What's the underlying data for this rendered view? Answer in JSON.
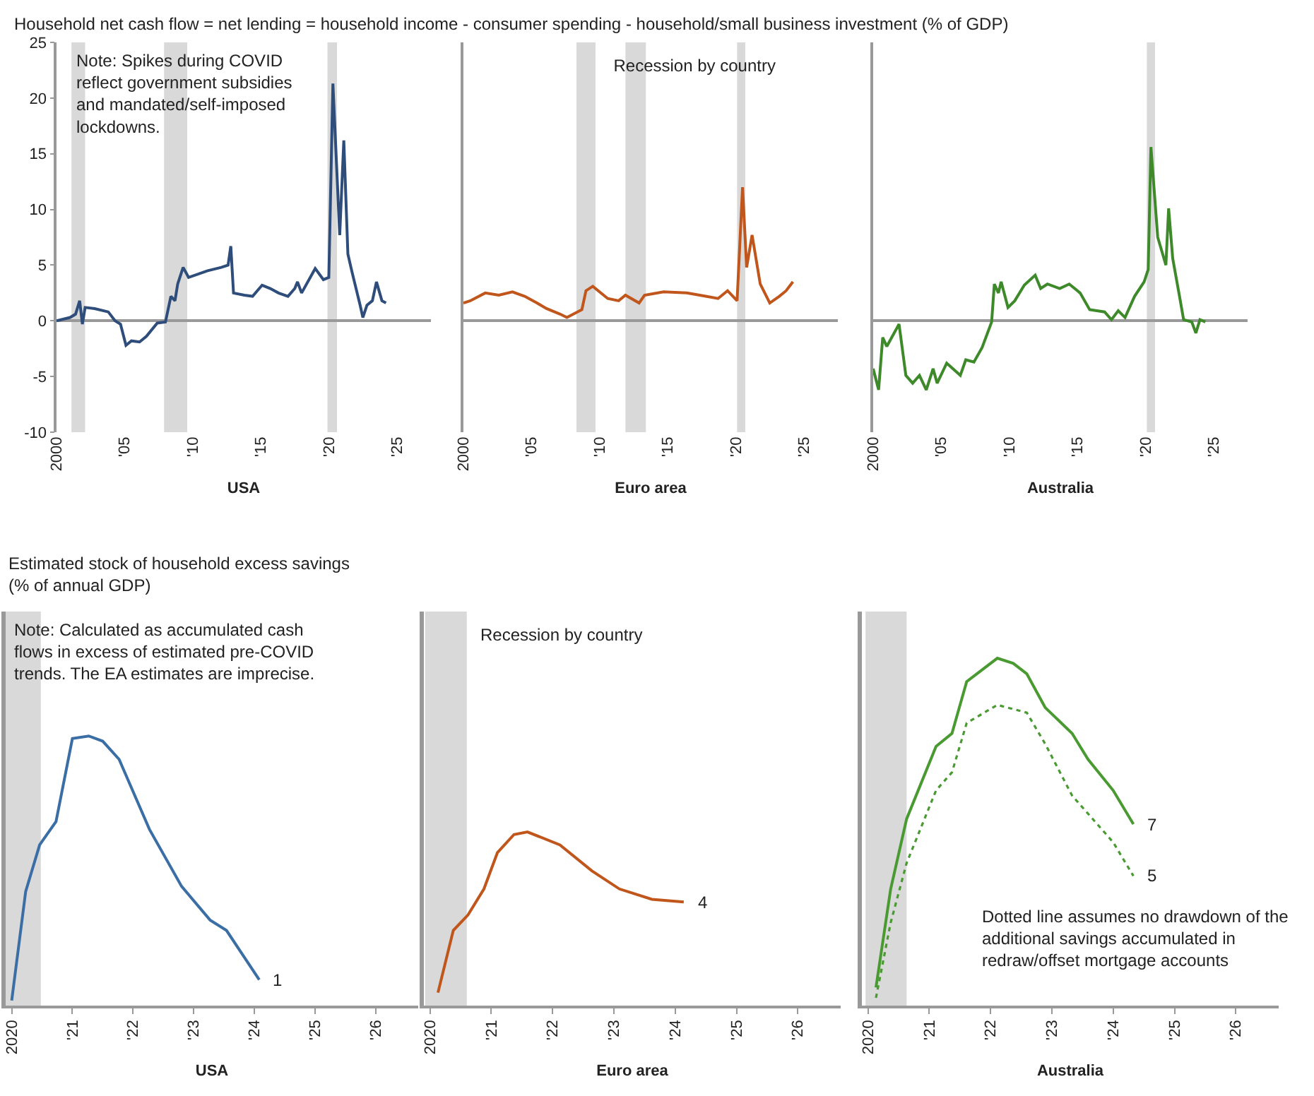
{
  "chart_data": [
    {
      "type": "line",
      "title": "Household net cash flow = net lending = household income - consumer spending - household/small business investment (% of GDP)",
      "xlabel": "USA",
      "annotations": [
        "Note: Spikes during COVID reflect government subsidies and mandated/self-imposed lockdowns."
      ],
      "xlim": [
        2000,
        2027.5
      ],
      "xticks": [
        {
          "value": 2000,
          "label": "2000"
        },
        {
          "value": 2005,
          "label": "'05"
        },
        {
          "value": 2010,
          "label": "'10"
        },
        {
          "value": 2015,
          "label": "'15"
        },
        {
          "value": 2020,
          "label": "'20"
        },
        {
          "value": 2025,
          "label": "'25"
        }
      ],
      "ylim": [
        -10,
        25
      ],
      "yticks": [
        -10,
        -5,
        0,
        5,
        10,
        15,
        20,
        25
      ],
      "bands": [
        {
          "axis": "x",
          "from": 2001.1,
          "to": 2002.1,
          "color": "#d9d9d9"
        },
        {
          "axis": "x",
          "from": 2007.9,
          "to": 2009.6,
          "color": "#d9d9d9"
        },
        {
          "axis": "x",
          "from": 2019.9,
          "to": 2020.6,
          "color": "#d9d9d9"
        }
      ],
      "series": [
        {
          "color": "#2e4d7b",
          "x": [
            2000,
            2001.0,
            2001.4,
            2001.7,
            2001.9,
            2002.1,
            2002.8,
            2003.8,
            2004.3,
            2004.7,
            2005.1,
            2005.5,
            2006.1,
            2006.6,
            2007.4,
            2008.0,
            2008.4,
            2008.7,
            2008.9,
            2009.3,
            2009.7,
            2011.1,
            2012.1,
            2012.6,
            2012.8,
            2013.0,
            2013.8,
            2014.4,
            2015.1,
            2015.7,
            2016.3,
            2017.0,
            2017.5,
            2017.7,
            2018.0,
            2019.0,
            2019.6,
            2020.0,
            2020.3,
            2020.8,
            2021.1,
            2021.4,
            2021.7,
            2022.3,
            2022.5,
            2022.8,
            2023.2,
            2023.5,
            2023.9,
            2024.2
          ],
          "values": [
            0,
            0.3,
            0.6,
            1.8,
            -0.3,
            1.2,
            1.1,
            0.8,
            0,
            -0.3,
            -2.2,
            -1.8,
            -1.9,
            -1.4,
            -0.2,
            -0.1,
            2.2,
            1.8,
            3.3,
            4.8,
            3.9,
            4.5,
            4.8,
            5.0,
            6.7,
            2.5,
            2.3,
            2.2,
            3.2,
            2.9,
            2.5,
            2.2,
            2.9,
            3.5,
            2.5,
            4.7,
            3.7,
            3.9,
            21.3,
            7.7,
            16.2,
            6.0,
            4.4,
            1.4,
            0.3,
            1.4,
            1.8,
            3.5,
            1.8,
            1.6
          ]
        }
      ]
    },
    {
      "type": "line",
      "xlabel": "Euro area",
      "tick_labels": "x",
      "legend": "top",
      "xlim": [
        2000,
        2027.5
      ],
      "xticks": [
        {
          "value": 2000,
          "label": "2000"
        },
        {
          "value": 2005,
          "label": "'05"
        },
        {
          "value": 2010,
          "label": "'10"
        },
        {
          "value": 2015,
          "label": "'15"
        },
        {
          "value": 2020,
          "label": "'20"
        },
        {
          "value": 2025,
          "label": "'25"
        }
      ],
      "ylim": [
        -10,
        25
      ],
      "yticks": [
        -10,
        -5,
        0,
        5,
        10,
        15,
        20,
        25
      ],
      "bands": [
        {
          "axis": "x",
          "from": 2008.3,
          "to": 2009.7,
          "color": "#d9d9d9",
          "label": "Recession by country"
        },
        {
          "axis": "x",
          "from": 2011.9,
          "to": 2013.4,
          "color": "#d9d9d9"
        },
        {
          "axis": "x",
          "from": 2020.1,
          "to": 2020.7,
          "color": "#d9d9d9"
        }
      ],
      "series": [
        {
          "color": "#c0561c",
          "x": [
            2000,
            2000.5,
            2001.6,
            2002.6,
            2003.6,
            2004.5,
            2005.4,
            2006.1,
            2007.1,
            2007.6,
            2008.7,
            2009.0,
            2009.5,
            2010.6,
            2011.4,
            2011.9,
            2012.9,
            2013.3,
            2014.7,
            2016.4,
            2017.8,
            2018.7,
            2019.4,
            2020.1,
            2020.5,
            2020.8,
            2021.2,
            2021.8,
            2022.5,
            2023.2,
            2023.7,
            2024.2
          ],
          "values": [
            1.6,
            1.8,
            2.5,
            2.3,
            2.6,
            2.2,
            1.6,
            1.1,
            0.6,
            0.3,
            1.0,
            2.7,
            3.1,
            2.0,
            1.8,
            2.3,
            1.6,
            2.3,
            2.6,
            2.5,
            2.2,
            2.0,
            2.7,
            1.8,
            12.0,
            4.8,
            7.7,
            3.3,
            1.6,
            2.2,
            2.7,
            3.5
          ]
        }
      ]
    },
    {
      "type": "line",
      "xlabel": "Australia",
      "tick_labels": "x",
      "xlim": [
        2000,
        2027.5
      ],
      "xticks": [
        {
          "value": 2000,
          "label": "2000"
        },
        {
          "value": 2005,
          "label": "'05"
        },
        {
          "value": 2010,
          "label": "'10"
        },
        {
          "value": 2015,
          "label": "'15"
        },
        {
          "value": 2020,
          "label": "'20"
        },
        {
          "value": 2025,
          "label": "'25"
        }
      ],
      "ylim": [
        -10,
        25
      ],
      "yticks": [
        -10,
        -5,
        0,
        5,
        10,
        15,
        20,
        25
      ],
      "bands": [
        {
          "axis": "x",
          "from": 2020.1,
          "to": 2020.7,
          "color": "#d9d9d9"
        }
      ],
      "series": [
        {
          "color": "#3e8a2a",
          "x": [
            2000,
            2000.4,
            2000.7,
            2001.0,
            2001.9,
            2002.4,
            2002.9,
            2003.4,
            2003.9,
            2004.4,
            2004.7,
            2005.4,
            2006.4,
            2006.8,
            2007.4,
            2008.0,
            2008.7,
            2008.9,
            2009.2,
            2009.4,
            2009.9,
            2010.4,
            2011.1,
            2011.9,
            2012.3,
            2012.8,
            2013.7,
            2014.4,
            2015.2,
            2015.9,
            2017.0,
            2017.5,
            2018.0,
            2018.5,
            2019.2,
            2019.9,
            2020.2,
            2020.4,
            2020.9,
            2021.5,
            2021.7,
            2022.0,
            2022.5,
            2022.8,
            2023.4,
            2023.7,
            2024.0,
            2024.4
          ],
          "values": [
            -4.3,
            -6.2,
            -1.5,
            -2.3,
            -0.3,
            -4.9,
            -5.6,
            -4.9,
            -6.2,
            -4.3,
            -5.6,
            -3.8,
            -4.9,
            -3.5,
            -3.7,
            -2.4,
            -0.1,
            3.3,
            2.5,
            3.5,
            1.2,
            1.8,
            3.2,
            4.1,
            2.9,
            3.3,
            2.9,
            3.3,
            2.5,
            1.0,
            0.8,
            0.1,
            0.9,
            0.3,
            2.2,
            3.5,
            4.6,
            15.6,
            7.5,
            5.0,
            10.1,
            5.6,
            2.2,
            0.1,
            -0.1,
            -1.1,
            0.1,
            -0.1
          ]
        }
      ]
    },
    {
      "type": "line",
      "title": "Estimated stock of household excess savings (% of annual GDP)",
      "xlabel": "USA",
      "tick_labels": "x",
      "annotations": [
        "Note: Calculated as accumulated cash flows in excess of estimated pre-COVID trends. The EA estimates are imprecise."
      ],
      "xlim": [
        2019.9,
        2026.7
      ],
      "xticks": [
        {
          "value": 2020,
          "label": "2020"
        },
        {
          "value": 2021,
          "label": "'21"
        },
        {
          "value": 2022,
          "label": "'22"
        },
        {
          "value": 2023,
          "label": "'23"
        },
        {
          "value": 2024,
          "label": "'24"
        },
        {
          "value": 2025,
          "label": "'25"
        },
        {
          "value": 2026,
          "label": "'26"
        }
      ],
      "ylim": [
        0,
        15.2
      ],
      "bands": [
        {
          "axis": "x",
          "from": 2019.9,
          "to": 2020.48,
          "color": "#d9d9d9"
        }
      ],
      "series": [
        {
          "color": "#3a6ea5",
          "x": [
            2020.0,
            2020.23,
            2020.46,
            2020.73,
            2021.0,
            2021.27,
            2021.5,
            2021.77,
            2022.27,
            2022.8,
            2023.27,
            2023.54,
            2024.08
          ],
          "values": [
            0.2,
            4.4,
            6.2,
            7.1,
            10.3,
            10.4,
            10.2,
            9.5,
            6.8,
            4.6,
            3.3,
            2.9,
            1
          ],
          "value_labels": [
            null,
            null,
            null,
            null,
            null,
            null,
            null,
            null,
            null,
            null,
            null,
            null,
            "1"
          ]
        }
      ]
    },
    {
      "type": "line",
      "xlabel": "Euro area",
      "tick_labels": "x",
      "legend": "top",
      "xlim": [
        2019.9,
        2026.7
      ],
      "xticks": [
        {
          "value": 2020,
          "label": "2020"
        },
        {
          "value": 2021,
          "label": "'21"
        },
        {
          "value": 2022,
          "label": "'22"
        },
        {
          "value": 2023,
          "label": "'23"
        },
        {
          "value": 2024,
          "label": "'24"
        },
        {
          "value": 2025,
          "label": "'25"
        },
        {
          "value": 2026,
          "label": "'26"
        }
      ],
      "ylim": [
        0,
        15.2
      ],
      "bands": [
        {
          "axis": "x",
          "from": 2019.92,
          "to": 2020.6,
          "color": "#d9d9d9",
          "label": "Recession by country"
        }
      ],
      "series": [
        {
          "color": "#c0561c",
          "x": [
            2020.13,
            2020.38,
            2020.62,
            2020.88,
            2021.1,
            2021.37,
            2021.59,
            2022.12,
            2022.64,
            2023.09,
            2023.62,
            2024.14
          ],
          "values": [
            0.5,
            2.9,
            3.5,
            4.5,
            5.9,
            6.6,
            6.7,
            6.2,
            5.2,
            4.5,
            4.1,
            4
          ],
          "value_labels": [
            null,
            null,
            null,
            null,
            null,
            null,
            null,
            null,
            null,
            null,
            null,
            "4"
          ]
        }
      ]
    },
    {
      "type": "line",
      "xlabel": "Australia",
      "tick_labels": "x",
      "annotations": [
        "Dotted line assumes no drawdown of the additional savings accumulated in redraw/offset mortgage accounts"
      ],
      "xlim": [
        2019.9,
        2026.7
      ],
      "xticks": [
        {
          "value": 2020,
          "label": "2020"
        },
        {
          "value": 2021,
          "label": "'21"
        },
        {
          "value": 2022,
          "label": "'22"
        },
        {
          "value": 2023,
          "label": "'23"
        },
        {
          "value": 2024,
          "label": "'24"
        },
        {
          "value": 2025,
          "label": "'25"
        },
        {
          "value": 2026,
          "label": "'26"
        }
      ],
      "ylim": [
        0,
        15.2
      ],
      "bands": [
        {
          "axis": "x",
          "from": 2019.96,
          "to": 2020.63,
          "color": "#d9d9d9"
        }
      ],
      "series": [
        {
          "color": "#4a9a32",
          "x": [
            2020.13,
            2020.37,
            2020.63,
            2021.11,
            2021.37,
            2021.61,
            2022.11,
            2022.37,
            2022.59,
            2022.89,
            2023.33,
            2023.59,
            2024.0,
            2024.33
          ],
          "values": [
            0.7,
            4.5,
            7.2,
            10.0,
            10.5,
            12.5,
            13.4,
            13.2,
            12.8,
            11.5,
            10.5,
            9.5,
            8.3,
            7
          ],
          "value_labels": [
            null,
            null,
            null,
            null,
            null,
            null,
            null,
            null,
            null,
            null,
            null,
            null,
            null,
            "7"
          ]
        },
        {
          "color": "#4a9a32",
          "line_style": "dotted",
          "x": [
            2020.13,
            2020.37,
            2020.63,
            2021.11,
            2021.37,
            2021.61,
            2022.11,
            2022.59,
            2022.89,
            2023.33,
            2024.0,
            2024.33
          ],
          "values": [
            0.3,
            3.2,
            5.5,
            8.3,
            9.0,
            10.9,
            11.6,
            11.3,
            10.1,
            8.1,
            6.3,
            5
          ],
          "value_labels": [
            null,
            null,
            null,
            null,
            null,
            null,
            null,
            null,
            null,
            null,
            null,
            "5"
          ]
        }
      ]
    }
  ]
}
